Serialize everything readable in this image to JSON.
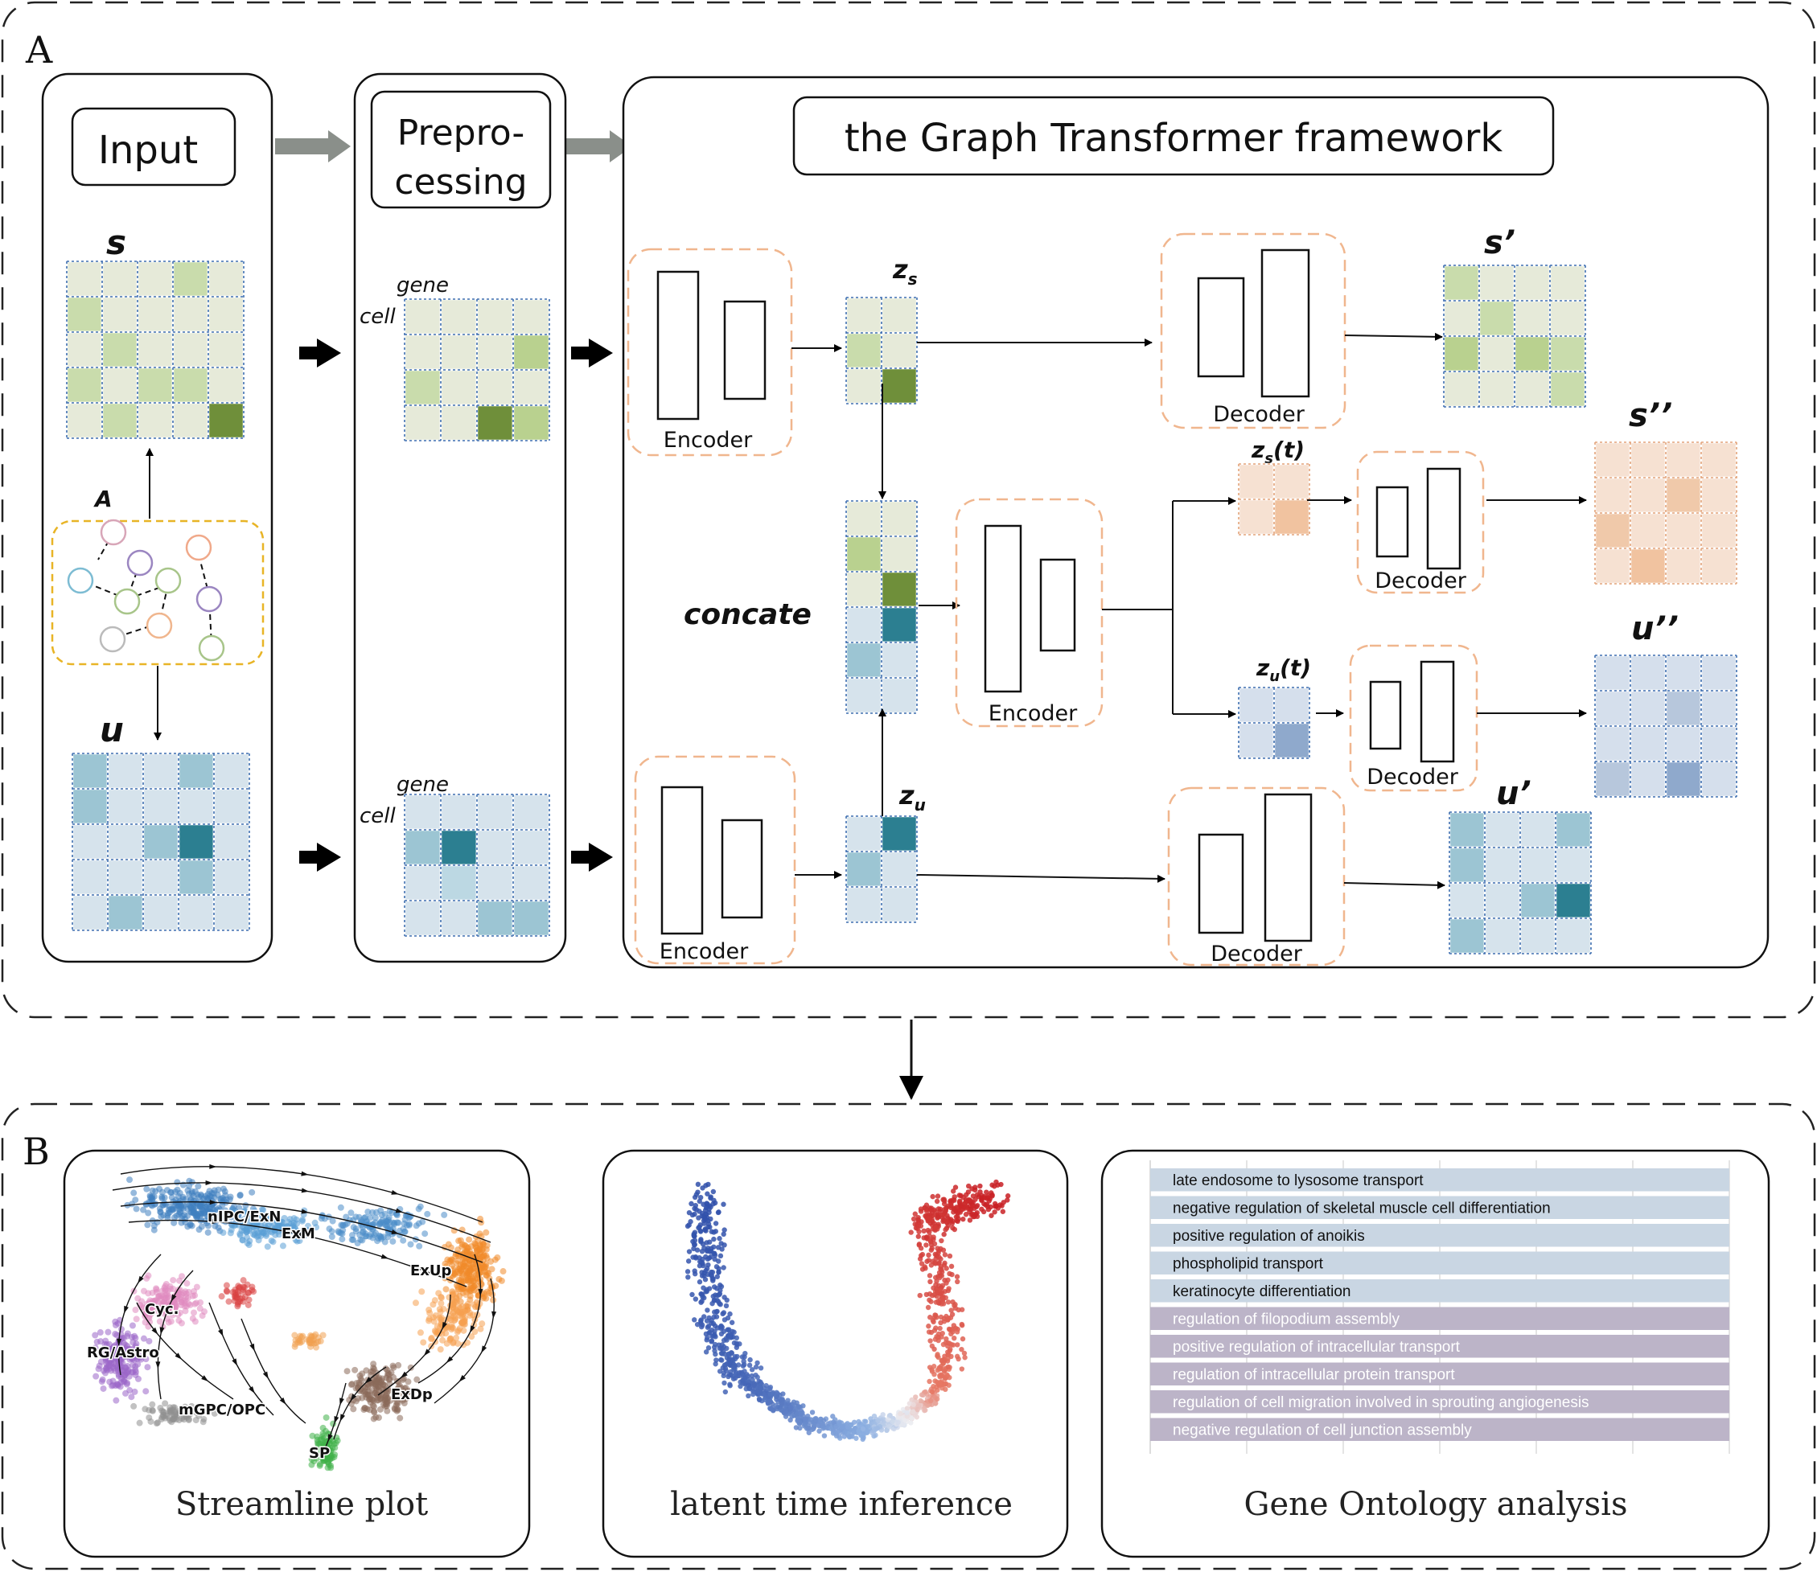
{
  "panel_a": {
    "label": "A",
    "input_title": "Input",
    "preprocessing_line1": "Prepro-",
    "preprocessing_line2": "cessing",
    "framework_title": "the Graph Transformer framework",
    "matrix_s": "s",
    "matrix_u": "u",
    "graph_label": "A",
    "gene_label": "gene",
    "cell_label": "cell",
    "z_s": "z",
    "z_s_sub": "s",
    "z_u": "z",
    "z_u_sub": "u",
    "z_s_t": "z",
    "z_s_t_sub": "s",
    "z_s_t_suffix": "(t)",
    "z_u_t": "z",
    "z_u_t_sub": "u",
    "z_u_t_suffix": "(t)",
    "concate": "concate",
    "encoder": "Encoder",
    "decoder": "Decoder",
    "s_prime": "s’",
    "s_double_prime": "s’’",
    "u_prime": "u’",
    "u_double_prime": "u’’"
  },
  "panel_b": {
    "label": "B",
    "streamline_title": "Streamline plot",
    "latent_title": "latent time  inference",
    "go_title": "Gene Ontology analysis",
    "clusters": [
      "nIPC/ExN",
      "ExM",
      "ExUp",
      "Cyc.",
      "RG/Astro",
      "mGPC/OPC",
      "ExDp",
      "SP"
    ],
    "go_terms": [
      "late endosome to lysosome transport",
      "negative regulation of skeletal muscle cell differentiation",
      "positive regulation of anoikis",
      "phospholipid transport",
      "keratinocyte differentiation",
      "regulation of filopodium assembly",
      "positive regulation of intracellular transport",
      "regulation of intracellular protein transport",
      "regulation of cell migration involved in sprouting angiogenesis",
      "negative regulation of cell junction assembly"
    ],
    "go_colors": [
      "#c9d6e3",
      "#c9d6e3",
      "#c9d6e3",
      "#c9d6e3",
      "#c9d6e3",
      "#bcb4c8",
      "#bcb4c8",
      "#bcb4c8",
      "#bcb4c8",
      "#bcb4c8"
    ]
  },
  "colors": {
    "green_light": "#e6ead9",
    "green_mid": "#c9dcac",
    "green_dark": "#6f8f3a",
    "blue_light": "#d6e3ec",
    "blue_mid": "#9cc5d3",
    "blue_dark": "#2c7f91",
    "orange_light": "#f6e1d2",
    "orange_mid": "#f1c3a0",
    "slate_light": "#d5dfec",
    "slate_mid": "#8fa9cc",
    "dash_orange": "#f0b68e",
    "graph_yellow": "#e8b426"
  }
}
